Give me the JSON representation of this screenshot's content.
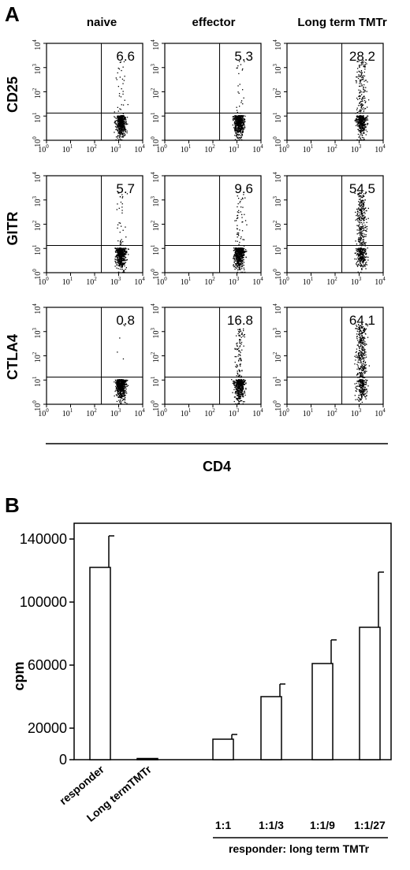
{
  "panel_a": {
    "letter": "A",
    "columns": [
      "naive",
      "effector",
      "Long term TMTr"
    ],
    "rows": [
      "CD25",
      "GITR",
      "CTLA4"
    ],
    "x_axis_label": "CD4",
    "tick_labels": [
      "10",
      "10",
      "10",
      "10",
      "10"
    ],
    "tick_exponents": [
      "0",
      "1",
      "2",
      "3",
      "4"
    ],
    "scale": "log",
    "axis_range": [
      1,
      10000
    ],
    "percentages": [
      [
        "6.6",
        "5.3",
        "28.2"
      ],
      [
        "5.7",
        "9.6",
        "54.5"
      ],
      [
        "0.8",
        "16.8",
        "64.1"
      ]
    ]
  },
  "panel_b": {
    "letter": "B",
    "ylabel": "cpm",
    "y_ticks": [
      "140000",
      "100000",
      "60000",
      "20000",
      "0"
    ],
    "group_label": "responder: long term TMTr"
  },
  "chart_data": [
    {
      "type": "scatter",
      "panel": "A",
      "x_axis": "CD4",
      "y_axes": [
        "CD25",
        "GITR",
        "CTLA4"
      ],
      "conditions": [
        "naive",
        "effector",
        "Long term TMTr"
      ],
      "x_scale": "log",
      "xlim": [
        1,
        10000
      ],
      "ylim": [
        1,
        10000
      ],
      "quadrant_percent_upper_right": [
        {
          "marker": "CD25",
          "naive": 6.6,
          "effector": 5.3,
          "Long term TMTr": 28.2
        },
        {
          "marker": "GITR",
          "naive": 5.7,
          "effector": 9.6,
          "Long term TMTr": 54.5
        },
        {
          "marker": "CTLA4",
          "naive": 0.8,
          "effector": 16.8,
          "Long term TMTr": 64.1
        }
      ]
    },
    {
      "type": "bar",
      "panel": "B",
      "categories": [
        "responder",
        "Long termTMTr",
        "1:1",
        "1:1/3",
        "1:1/9",
        "1:1/27"
      ],
      "values": [
        122000,
        500,
        13000,
        40000,
        61000,
        84000
      ],
      "errors": [
        20000,
        0,
        3000,
        8000,
        15000,
        35000
      ],
      "ylabel": "cpm",
      "ylim": [
        0,
        150000
      ],
      "y_ticks": [
        0,
        20000,
        60000,
        100000,
        140000
      ]
    }
  ]
}
